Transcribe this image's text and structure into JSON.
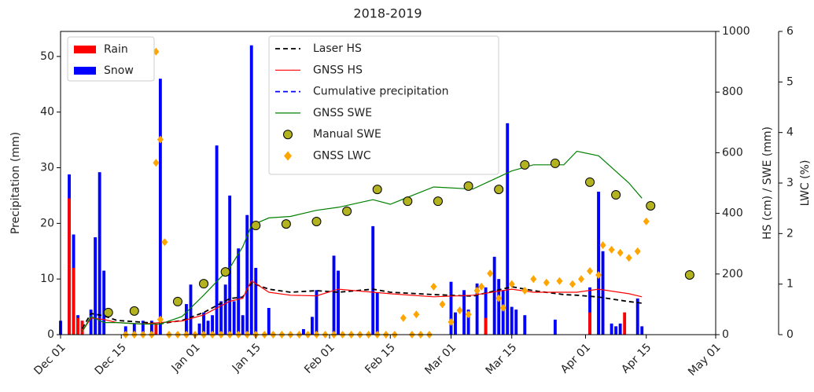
{
  "chart_data": {
    "type": "combo",
    "title": "2018-2019",
    "xlim": [
      "Dec 01",
      "May 01"
    ],
    "xticks": [
      "Dec 01",
      "Dec 15",
      "Jan 01",
      "Jan 15",
      "Feb 01",
      "Feb 15",
      "Mar 01",
      "Mar 15",
      "Apr 01",
      "Apr 15",
      "May 01"
    ],
    "ylabel": "Precipitation (mm)",
    "ylim": [
      0,
      54.5
    ],
    "yticks": [
      0,
      10,
      20,
      30,
      40,
      50
    ],
    "y2label": "HS (cm) / SWE (mm)",
    "y2lim": [
      0,
      1000
    ],
    "y2ticks": [
      0,
      200,
      400,
      600,
      800,
      1000
    ],
    "y3label": "LWC (%)",
    "y3lim": [
      0,
      6
    ],
    "y3ticks": [
      0,
      1,
      2,
      3,
      4,
      5,
      6
    ],
    "series": [
      {
        "name": "Rain",
        "type": "bar",
        "color": "#ff0000",
        "axis": "y",
        "legend": "upper left",
        "x": [
          "Dec 03",
          "Dec 04",
          "Dec 05",
          "Dec 06",
          "Dec 23",
          "Mar 09",
          "Apr 02",
          "Apr 10"
        ],
        "values": [
          24.5,
          12,
          3,
          2.5,
          2,
          3,
          4,
          4
        ]
      },
      {
        "name": "Snow",
        "type": "bar",
        "color": "#0000ff",
        "axis": "y",
        "legend": "upper left",
        "x": [
          "Dec 01",
          "Dec 03",
          "Dec 04",
          "Dec 05",
          "Dec 06",
          "Dec 08",
          "Dec 09",
          "Dec 10",
          "Dec 11",
          "Dec 16",
          "Dec 18",
          "Dec 20",
          "Dec 22",
          "Dec 24",
          "Dec 30",
          "Dec 31",
          "Jan 02",
          "Jan 03",
          "Jan 04",
          "Jan 05",
          "Jan 06",
          "Jan 07",
          "Jan 08",
          "Jan 09",
          "Jan 10",
          "Jan 11",
          "Jan 12",
          "Jan 13",
          "Jan 14",
          "Jan 15",
          "Jan 18",
          "Jan 26",
          "Jan 28",
          "Jan 29",
          "Feb 02",
          "Feb 03",
          "Feb 11",
          "Feb 12",
          "Mar 01",
          "Mar 02",
          "Mar 04",
          "Mar 05",
          "Mar 07",
          "Mar 09",
          "Mar 11",
          "Mar 12",
          "Mar 13",
          "Mar 14",
          "Mar 15",
          "Mar 16",
          "Mar 18",
          "Mar 25",
          "Apr 02",
          "Apr 04",
          "Apr 05",
          "Apr 07",
          "Apr 08",
          "Apr 09",
          "Apr 13",
          "Apr 14"
        ],
        "values": [
          2.5,
          28.8,
          18,
          3.5,
          2.5,
          4.5,
          17.5,
          29.2,
          11.5,
          1.5,
          2,
          2.5,
          2.5,
          46,
          5.5,
          9,
          2,
          4,
          2.5,
          3.5,
          34,
          6,
          9,
          25,
          6,
          15.5,
          3.5,
          21.5,
          52,
          12,
          4.8,
          1,
          3.2,
          8,
          14.2,
          11.5,
          19.5,
          7.5,
          9.5,
          4,
          8,
          4.5,
          9.2,
          8.5,
          14,
          10,
          8,
          38,
          5,
          4.5,
          3.5,
          2.7,
          8.5,
          25.7,
          15,
          2,
          1.5,
          2,
          6.5,
          1.5
        ]
      },
      {
        "name": "Laser HS",
        "type": "line",
        "style": "dashed",
        "color": "#000000",
        "axis": "y2",
        "legend": "upper center",
        "x": [
          "Dec 06",
          "Dec 08",
          "Dec 11",
          "Dec 14",
          "Dec 20",
          "Dec 24",
          "Dec 29",
          "Jan 03",
          "Jan 09",
          "Jan 12",
          "Jan 14",
          "Jan 18",
          "Jan 23",
          "Jan 29",
          "Feb 03",
          "Feb 11",
          "Feb 15",
          "Feb 25",
          "Mar 06",
          "Mar 15",
          "Mar 20",
          "Mar 27",
          "Mar 30",
          "Apr 04",
          "Apr 11",
          "Apr 14"
        ],
        "values": [
          20,
          70,
          62,
          47,
          41,
          36,
          47,
          73,
          119,
          124,
          171,
          150,
          140,
          145,
          140,
          150,
          140,
          132,
          127,
          158,
          145,
          132,
          130,
          124,
          109,
          104
        ]
      },
      {
        "name": "GNSS HS",
        "type": "line",
        "style": "solid",
        "color": "#ff0000",
        "axis": "y2",
        "legend": "upper center",
        "x": [
          "Dec 06",
          "Dec 08",
          "Dec 11",
          "Dec 14",
          "Dec 20",
          "Dec 24",
          "Dec 29",
          "Jan 03",
          "Jan 09",
          "Jan 12",
          "Jan 14",
          "Jan 18",
          "Jan 23",
          "Jan 29",
          "Feb 03",
          "Feb 11",
          "Feb 15",
          "Feb 25",
          "Mar 06",
          "Mar 15",
          "Mar 20",
          "Mar 27",
          "Mar 30",
          "Apr 04",
          "Apr 11",
          "Apr 14"
        ],
        "values": [
          10,
          55,
          50,
          40,
          35,
          40,
          45,
          65,
          110,
          120,
          178,
          140,
          130,
          128,
          150,
          140,
          135,
          125,
          130,
          150,
          140,
          140,
          140,
          150,
          135,
          125
        ]
      },
      {
        "name": "Cumulative precipitation",
        "type": "line",
        "style": "dashed",
        "color": "#0000ff",
        "axis": "y2",
        "legend": "upper center",
        "x": [],
        "values": []
      },
      {
        "name": "GNSS SWE",
        "type": "line",
        "style": "solid",
        "color": "#008000",
        "axis": "y2",
        "legend": "upper center",
        "x": [
          "Dec 06",
          "Dec 08",
          "Dec 11",
          "Dec 14",
          "Dec 20",
          "Dec 24",
          "Dec 29",
          "Jan 03",
          "Jan 09",
          "Jan 12",
          "Jan 14",
          "Jan 18",
          "Jan 23",
          "Jan 29",
          "Feb 03",
          "Feb 11",
          "Feb 15",
          "Feb 25",
          "Mar 06",
          "Mar 15",
          "Mar 20",
          "Mar 27",
          "Mar 30",
          "Apr 04",
          "Apr 11",
          "Apr 14"
        ],
        "values": [
          10,
          60,
          40,
          40,
          35,
          35,
          60,
          130,
          220,
          290,
          360,
          385,
          390,
          410,
          420,
          445,
          430,
          487,
          480,
          540,
          560,
          560,
          605,
          590,
          500,
          450
        ]
      },
      {
        "name": "Manual SWE",
        "type": "scatter",
        "marker": "circle",
        "color": "#b3b31f",
        "axis": "y2",
        "legend": "upper center",
        "x": [
          "Dec 12",
          "Dec 18",
          "Dec 28",
          "Jan 03",
          "Jan 08",
          "Jan 15",
          "Jan 22",
          "Jan 29",
          "Feb 05",
          "Feb 12",
          "Feb 19",
          "Feb 26",
          "Mar 05",
          "Mar 12",
          "Mar 18",
          "Mar 25",
          "Apr 02",
          "Apr 08",
          "Apr 16",
          "Apr 25"
        ],
        "values": [
          73,
          78,
          109,
          168,
          207,
          360,
          365,
          373,
          407,
          479,
          440,
          440,
          490,
          479,
          560,
          565,
          503,
          461,
          425,
          197
        ]
      },
      {
        "name": "GNSS LWC",
        "type": "scatter",
        "marker": "diamond",
        "color": "#ffa500",
        "axis": "y3",
        "legend": "upper center",
        "x": [
          "Dec 16",
          "Dec 18",
          "Dec 20",
          "Dec 22",
          "Dec 26",
          "Dec 28",
          "Dec 30",
          "Jan 01",
          "Jan 03",
          "Jan 05",
          "Jan 07",
          "Jan 09",
          "Jan 11",
          "Jan 13",
          "Jan 15",
          "Jan 17",
          "Jan 19",
          "Jan 21",
          "Jan 23",
          "Jan 25",
          "Jan 27",
          "Jan 29",
          "Jan 31",
          "Feb 02",
          "Feb 04",
          "Feb 06",
          "Feb 08",
          "Feb 10",
          "Feb 12",
          "Feb 14",
          "Feb 16",
          "Feb 20",
          "Feb 22",
          "Feb 24",
          "Dec 23",
          "Dec 24",
          "Dec 23",
          "Dec 25",
          "Dec 24",
          "Feb 18",
          "Feb 21",
          "Feb 25",
          "Feb 27",
          "Mar 01",
          "Mar 03",
          "Mar 05",
          "Mar 07",
          "Mar 08",
          "Mar 10",
          "Mar 12",
          "Mar 13",
          "Mar 15",
          "Mar 18",
          "Mar 20",
          "Mar 23",
          "Mar 26",
          "Mar 29",
          "Mar 31",
          "Apr 02",
          "Apr 04",
          "Apr 05",
          "Apr 07",
          "Apr 09",
          "Apr 11",
          "Apr 13",
          "Apr 15"
        ],
        "values": [
          0,
          0,
          0,
          0,
          0,
          0,
          0,
          0,
          0,
          0,
          0,
          0,
          0,
          0,
          0,
          0,
          0,
          0,
          0,
          0,
          0,
          0,
          0,
          0,
          0,
          0,
          0,
          0,
          0,
          0,
          0,
          0,
          0,
          0,
          5.6,
          3.86,
          3.4,
          1.83,
          0.3,
          0.33,
          0.4,
          0.95,
          0.6,
          0.25,
          0.48,
          0.4,
          0.87,
          0.95,
          1.21,
          0.72,
          0.53,
          1.0,
          0.87,
          1.1,
          1.03,
          1.06,
          1.0,
          1.1,
          1.26,
          1.18,
          1.77,
          1.68,
          1.62,
          1.52,
          1.65,
          2.24
        ]
      }
    ]
  }
}
